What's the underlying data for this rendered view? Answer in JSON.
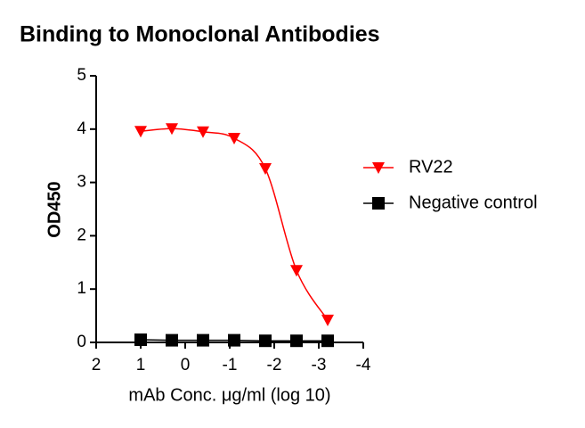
{
  "chart_data": {
    "type": "line",
    "title": "Binding to Monoclonal Antibodies",
    "x_label": "mAb Conc. μg/ml (log 10)",
    "y_label": "OD450",
    "x": [
      1,
      0.3,
      -0.4,
      -1.1,
      -1.8,
      -2.5,
      -3.2
    ],
    "series": [
      {
        "name": "RV22",
        "color": "#ff0000",
        "marker": "triangle-down",
        "smooth": true,
        "values": [
          3.96,
          4.01,
          3.95,
          3.83,
          3.26,
          1.35,
          0.42
        ]
      },
      {
        "name": "Negative control",
        "color": "#000000",
        "marker": "square",
        "smooth": false,
        "values": [
          0.05,
          0.04,
          0.04,
          0.04,
          0.03,
          0.03,
          0.03
        ]
      }
    ],
    "xlim": [
      2,
      -4
    ],
    "xticks": [
      2,
      1,
      0,
      -1,
      -2,
      -3,
      -4
    ],
    "ylim": [
      0,
      5
    ],
    "yticks": [
      0,
      1,
      2,
      3,
      4,
      5
    ],
    "legend": "right"
  }
}
